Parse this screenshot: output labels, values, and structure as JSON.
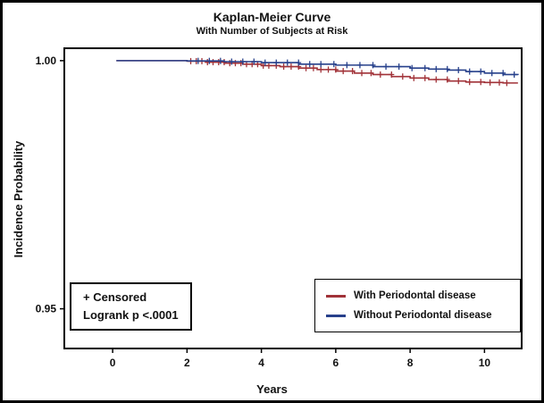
{
  "title": "Kaplan-Meier Curve",
  "subtitle": "With Number of Subjects at Risk",
  "xlabel": "Years",
  "ylabel": "Incidence Probability",
  "annotation": {
    "line1": "+ Censored",
    "line2": "Logrank p <.0001"
  },
  "chart_data": {
    "type": "line",
    "title": "Kaplan-Meier Curve",
    "subtitle": "With Number of Subjects at Risk",
    "xlabel": "Years",
    "ylabel": "Incidence Probability",
    "xlim": [
      -1.3,
      11.0
    ],
    "ylim": [
      0.942,
      1.0025
    ],
    "xticks": [
      0,
      2,
      4,
      6,
      8,
      10
    ],
    "yticks": [
      "1.00",
      "0.95"
    ],
    "grid": false,
    "legend_position": "bottom-right",
    "censor_marker": "+",
    "series": [
      {
        "name": "With Periodontal disease",
        "color": "#a13238",
        "points": [
          [
            0.1,
            1.0
          ],
          [
            2.0,
            0.9999
          ],
          [
            2.5,
            0.9997
          ],
          [
            3.0,
            0.9995
          ],
          [
            3.5,
            0.9993
          ],
          [
            4.0,
            0.999
          ],
          [
            4.5,
            0.9988
          ],
          [
            5.0,
            0.9985
          ],
          [
            5.5,
            0.9982
          ],
          [
            6.0,
            0.9979
          ],
          [
            6.5,
            0.9975
          ],
          [
            7.0,
            0.9972
          ],
          [
            7.5,
            0.9968
          ],
          [
            8.0,
            0.9965
          ],
          [
            8.5,
            0.9962
          ],
          [
            9.0,
            0.9959
          ],
          [
            9.5,
            0.9957
          ],
          [
            10.0,
            0.9956
          ],
          [
            10.5,
            0.9955
          ],
          [
            10.9,
            0.9955
          ]
        ],
        "censor_x": [
          2.1,
          2.25,
          2.4,
          2.55,
          2.7,
          2.85,
          3.0,
          3.15,
          3.3,
          3.45,
          3.6,
          3.75,
          3.9,
          4.05,
          4.2,
          4.4,
          4.6,
          4.8,
          5.0,
          5.2,
          5.4,
          5.6,
          5.8,
          6.0,
          6.2,
          6.45,
          6.7,
          6.95,
          7.2,
          7.5,
          7.8,
          8.1,
          8.4,
          8.7,
          9.0,
          9.3,
          9.6,
          9.9,
          10.15,
          10.4,
          10.6
        ]
      },
      {
        "name": "Without Periodontal disease",
        "color": "#27408b",
        "points": [
          [
            0.1,
            1.0
          ],
          [
            2.0,
            0.99995
          ],
          [
            3.0,
            0.9998
          ],
          [
            4.0,
            0.9996
          ],
          [
            5.0,
            0.9993
          ],
          [
            6.0,
            0.9991
          ],
          [
            7.0,
            0.9988
          ],
          [
            8.0,
            0.9985
          ],
          [
            8.5,
            0.9983
          ],
          [
            9.0,
            0.9981
          ],
          [
            9.5,
            0.9978
          ],
          [
            10.0,
            0.9975
          ],
          [
            10.5,
            0.9972
          ],
          [
            10.9,
            0.9971
          ]
        ],
        "censor_x": [
          2.3,
          2.6,
          2.9,
          3.2,
          3.5,
          3.8,
          4.1,
          4.4,
          4.7,
          5.0,
          5.3,
          5.6,
          5.95,
          6.3,
          6.65,
          7.0,
          7.35,
          7.7,
          8.05,
          8.4,
          8.7,
          9.0,
          9.3,
          9.6,
          9.9,
          10.2,
          10.5,
          10.8
        ]
      }
    ]
  }
}
